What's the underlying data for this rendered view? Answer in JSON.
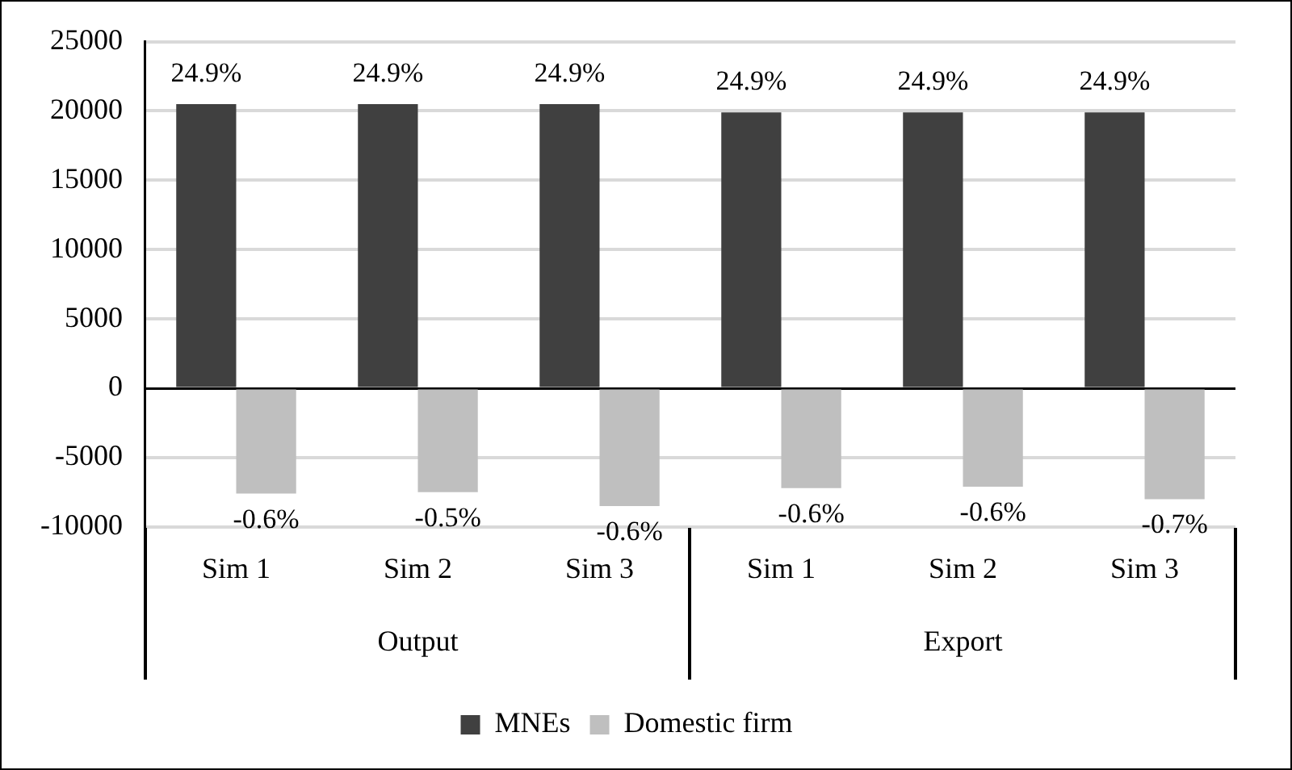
{
  "chart_data": {
    "type": "bar",
    "categories": [
      "Sim 1",
      "Sim 2",
      "Sim 3",
      "Sim 1",
      "Sim 2",
      "Sim 3"
    ],
    "series": [
      {
        "name": "MNEs",
        "color": "#404040",
        "values": [
          20500,
          20500,
          20500,
          19900,
          19900,
          19900
        ]
      },
      {
        "name": "Domestic firm",
        "color": "#bfbfbf",
        "values": [
          -7600,
          -7500,
          -8500,
          -7200,
          -7100,
          -8000
        ]
      }
    ],
    "annotations": [
      "24.9%",
      "24.9%",
      "24.9%",
      "24.9%",
      "24.9%",
      "24.9%",
      "-0.6%",
      "-0.5%",
      "-0.6%",
      "-0.6%",
      "-0.6%",
      "-0.7%",
      "Output",
      "Export"
    ],
    "ylim": [
      -10000,
      25000
    ],
    "yticks": [
      -10000,
      -5000,
      0,
      5000,
      10000,
      15000,
      20000,
      25000
    ],
    "grid": "y",
    "legend": "bottom"
  }
}
